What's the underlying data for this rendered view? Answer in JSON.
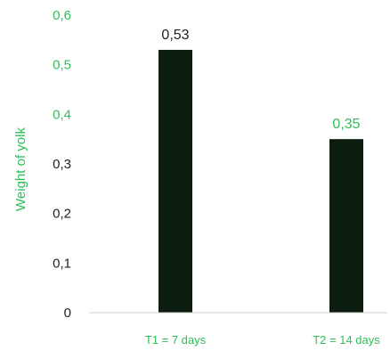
{
  "chart_data": {
    "type": "bar",
    "title": "",
    "xlabel": "",
    "ylabel": "Weight of yolk",
    "categories": [
      "T1 = 7 days",
      "T2 = 14 days"
    ],
    "values": [
      0.53,
      0.35
    ],
    "data_labels": [
      "0,53",
      "0,35"
    ],
    "ylim": [
      0,
      0.6
    ],
    "yticks": [
      0,
      0.1,
      0.2,
      0.3,
      0.4,
      0.5,
      0.6
    ],
    "ytick_labels": [
      "0",
      "0,1",
      "0,2",
      "0,3",
      "0,4",
      "0,5",
      "0,6"
    ],
    "grid": false,
    "legend": "none",
    "colors": {
      "bar": "#0c1d10",
      "axis_line": "#cfcfcf",
      "ytick_label_green": "#2fbf5a",
      "ytick_label_dark": "#222222",
      "category_label": "#2fbf5a",
      "data_label_first": "#222222",
      "data_label_second": "#2fbf5a",
      "ylabel": "#2fbf5a"
    },
    "ytick_label_color_roles": [
      "dark",
      "dark",
      "dark",
      "dark",
      "green",
      "green",
      "green"
    ]
  }
}
